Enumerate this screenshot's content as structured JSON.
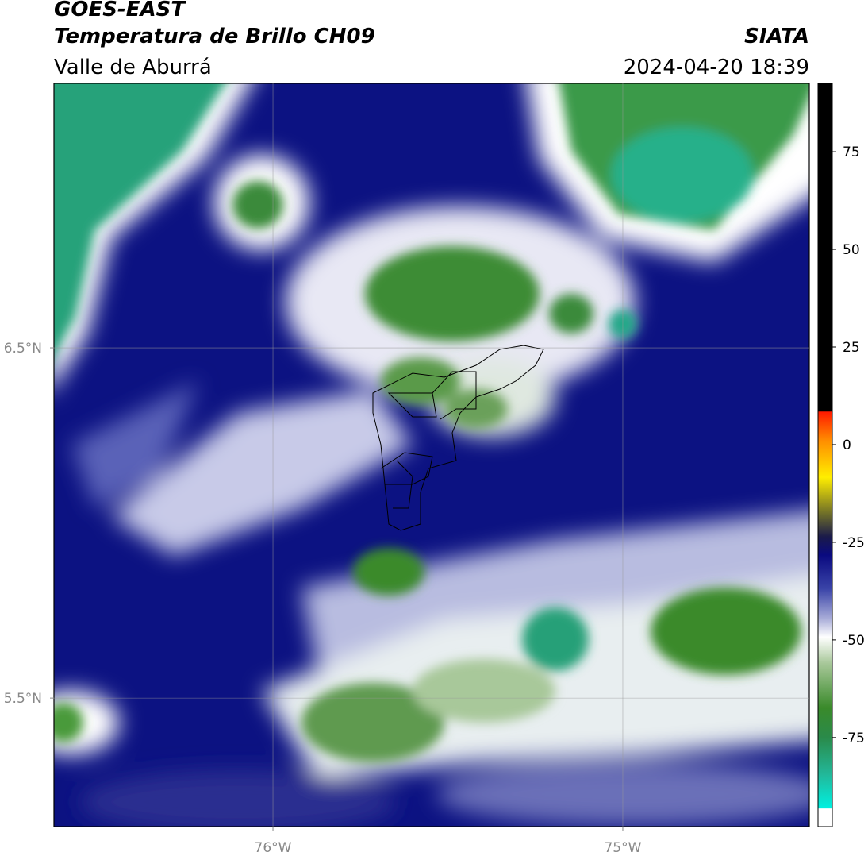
{
  "header": {
    "title": "GOES-EAST",
    "subtitle": "Temperatura de Brillo CH09",
    "region": "Valle de Aburrá",
    "source": "SIATA",
    "timestamp": "2024-04-20 18:39"
  },
  "map": {
    "xlim": [
      -76.626,
      -74.467
    ],
    "ylim": [
      5.133,
      7.255
    ],
    "xticks": [
      {
        "value": -76,
        "label": "76°W"
      },
      {
        "value": -75,
        "label": "75°W"
      }
    ],
    "yticks": [
      {
        "value": 6.5,
        "label": "6.5°N"
      },
      {
        "value": 5.5,
        "label": "5.5°N"
      }
    ]
  },
  "colorbar": {
    "lim": [
      -97.8,
      92.5
    ],
    "ticks": [
      75,
      50,
      25,
      0,
      -25,
      -50,
      -75
    ]
  }
}
